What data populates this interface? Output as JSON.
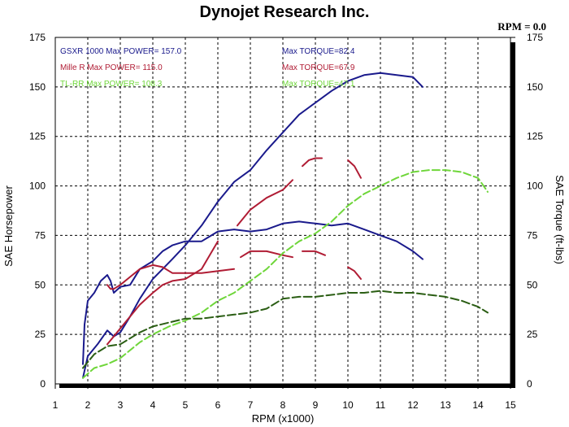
{
  "chart_data": {
    "type": "line",
    "title": "Dynojet Research Inc.",
    "rpm_readout": "RPM = 0.0",
    "xlabel": "RPM (x1000)",
    "ylabel": "SAE Horsepower",
    "y2label": "SAE Torque (ft-lbs)",
    "xlim": [
      1,
      15
    ],
    "ylim": [
      0,
      175
    ],
    "y2lim": [
      0,
      175
    ],
    "x_ticks": [
      "1",
      "2",
      "3",
      "4",
      "5",
      "6",
      "7",
      "8",
      "9",
      "10",
      "11",
      "12",
      "13",
      "14",
      "15"
    ],
    "y_ticks": [
      "0",
      "25",
      "50",
      "75",
      "100",
      "125",
      "150",
      "175"
    ],
    "y2_ticks": [
      "0",
      "25",
      "50",
      "75",
      "100",
      "125",
      "150",
      "175"
    ],
    "grid": true,
    "legend": [
      {
        "id": "gsxr",
        "power_label": "GSXR 1000  Max POWER= 157.0",
        "torque_label": "Max TORQUE=82.4",
        "color": "#1a1a8c"
      },
      {
        "id": "mille",
        "power_label": "Mille R  Max POWER= 115.0",
        "torque_label": "Max TORQUE=67.9",
        "color": "#b01c34"
      },
      {
        "id": "tl",
        "power_label": "TL-RR  Max POWER= 108.3",
        "torque_label": "Max TORQUE=47.1",
        "color": "#6fd63a"
      }
    ],
    "series": [
      {
        "id": "gsxr-power",
        "color": "#1a1a8c",
        "dash": "",
        "x": [
          1.85,
          2.0,
          2.3,
          2.6,
          2.8,
          3.0,
          3.3,
          3.6,
          4.0,
          4.3,
          4.6,
          5.0,
          5.5,
          6.0,
          6.5,
          7.0,
          7.5,
          8.0,
          8.5,
          9.0,
          9.5,
          10.0,
          10.5,
          11.0,
          11.5,
          12.0,
          12.3
        ],
        "y": [
          3,
          14,
          20,
          27,
          24,
          26,
          34,
          43,
          53,
          58,
          63,
          70,
          80,
          92,
          102,
          108,
          118,
          127,
          136,
          142,
          148,
          153,
          156,
          157,
          156,
          155,
          150
        ]
      },
      {
        "id": "gsxr-torque",
        "color": "#1a1a8c",
        "dash": "",
        "x": [
          1.85,
          1.9,
          2.0,
          2.2,
          2.4,
          2.6,
          2.7,
          2.8,
          3.0,
          3.3,
          3.6,
          4.0,
          4.3,
          4.6,
          5.0,
          5.5,
          6.0,
          6.5,
          7.0,
          7.5,
          8.0,
          8.5,
          9.0,
          9.5,
          10.0,
          10.5,
          11.0,
          11.5,
          12.0,
          12.3
        ],
        "y": [
          10,
          30,
          42,
          46,
          52,
          55,
          52,
          46,
          49,
          50,
          58,
          62,
          67,
          70,
          72,
          72,
          77,
          78,
          77,
          78,
          81,
          82,
          81,
          80,
          81,
          78,
          75,
          72,
          67,
          63
        ]
      },
      {
        "id": "mille-power",
        "color": "#b01c34",
        "dash": "",
        "x": [
          2.6,
          2.8,
          3.0,
          3.3,
          3.6,
          4.0,
          4.3,
          4.6,
          5.0,
          5.5,
          6.0
        ],
        "y": [
          20,
          24,
          28,
          34,
          40,
          46,
          50,
          52,
          53,
          58,
          72
        ]
      },
      {
        "id": "mille-power-2",
        "color": "#b01c34",
        "dash": "",
        "x": [
          6.6,
          7.0,
          7.5,
          8.0,
          8.3
        ],
        "y": [
          80,
          88,
          94,
          98,
          103
        ]
      },
      {
        "id": "mille-power-3",
        "color": "#b01c34",
        "dash": "",
        "x": [
          8.6,
          8.8,
          9.0,
          9.2
        ],
        "y": [
          110,
          113,
          114,
          114
        ]
      },
      {
        "id": "mille-power-4",
        "color": "#b01c34",
        "dash": "",
        "x": [
          10.0,
          10.2,
          10.4
        ],
        "y": [
          113,
          110,
          104
        ]
      },
      {
        "id": "mille-torque",
        "color": "#b01c34",
        "dash": "",
        "x": [
          2.6,
          2.7,
          2.8,
          3.0,
          3.3,
          3.6,
          4.0,
          4.3,
          4.6,
          5.0,
          5.5,
          6.0,
          6.5
        ],
        "y": [
          50,
          48,
          48,
          50,
          54,
          58,
          60,
          59,
          56,
          56,
          56,
          57,
          58
        ]
      },
      {
        "id": "mille-torque-2",
        "color": "#b01c34",
        "dash": "",
        "x": [
          6.7,
          7.0,
          7.5,
          8.0,
          8.3
        ],
        "y": [
          64,
          67,
          67,
          65,
          64
        ]
      },
      {
        "id": "mille-torque-3",
        "color": "#b01c34",
        "dash": "",
        "x": [
          8.6,
          9.0,
          9.3
        ],
        "y": [
          67,
          67,
          65
        ]
      },
      {
        "id": "mille-torque-4",
        "color": "#b01c34",
        "dash": "",
        "x": [
          10.0,
          10.2,
          10.4
        ],
        "y": [
          59,
          57,
          53
        ]
      },
      {
        "id": "tl-power",
        "color": "#6fd63a",
        "dash": "9 4",
        "x": [
          1.85,
          2.2,
          2.6,
          3.0,
          3.3,
          3.6,
          4.0,
          4.5,
          5.0,
          5.5,
          6.0,
          6.5,
          7.0,
          7.5,
          8.0,
          8.5,
          9.0,
          9.5,
          10.0,
          10.5,
          11.0,
          11.5,
          12.0,
          12.5,
          13.0,
          13.5,
          14.0,
          14.3
        ],
        "y": [
          3,
          8,
          10,
          13,
          17,
          21,
          25,
          29,
          32,
          36,
          42,
          46,
          52,
          58,
          66,
          72,
          76,
          82,
          90,
          96,
          100,
          104,
          107,
          108,
          108,
          107,
          104,
          97
        ]
      },
      {
        "id": "tl-torque",
        "color": "#2b5e14",
        "dash": "10 4",
        "x": [
          1.85,
          2.2,
          2.6,
          3.0,
          3.3,
          3.6,
          4.0,
          4.5,
          5.0,
          5.5,
          6.0,
          6.5,
          7.0,
          7.5,
          8.0,
          8.5,
          9.0,
          9.5,
          10.0,
          10.5,
          11.0,
          11.5,
          12.0,
          12.5,
          13.0,
          13.5,
          14.0,
          14.3
        ],
        "y": [
          8,
          15,
          19,
          20,
          23,
          26,
          29,
          31,
          33,
          33,
          34,
          35,
          36,
          38,
          43,
          44,
          44,
          45,
          46,
          46,
          47,
          46,
          46,
          45,
          44,
          42,
          39,
          36
        ]
      }
    ]
  }
}
